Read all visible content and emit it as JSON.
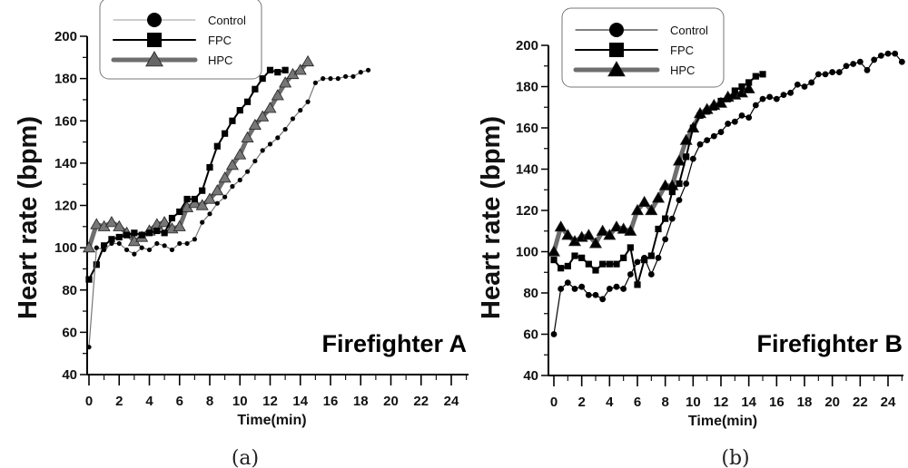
{
  "chart_data": [
    {
      "type": "line",
      "panel_label": "(a)",
      "annotation": "Firefighter A",
      "xlabel": "Time(min)",
      "ylabel": "Heart rate (bpm)",
      "xlim": [
        0,
        25
      ],
      "ylim": [
        40,
        200
      ],
      "xticks": [
        "0",
        "2",
        "4",
        "6",
        "8",
        "10",
        "12",
        "14",
        "16",
        "18",
        "20",
        "22",
        "24"
      ],
      "yticks": [
        "40",
        "60",
        "80",
        "100",
        "120",
        "140",
        "160",
        "180",
        "200"
      ],
      "grid": false,
      "legend_position": "top-left",
      "series": [
        {
          "name": "Control",
          "marker": "circle",
          "color": "#000000",
          "x": [
            0,
            0.5,
            1,
            1.5,
            2,
            2.5,
            3,
            3.5,
            4,
            4.5,
            5,
            5.5,
            6,
            6.5,
            7,
            7.5,
            8,
            8.5,
            9,
            9.5,
            10,
            10.5,
            11,
            11.5,
            12,
            12.5,
            13,
            13.5,
            14,
            14.5,
            15,
            15.5,
            16,
            16.5,
            17,
            17.5,
            18,
            18.5
          ],
          "y": [
            53,
            100,
            99,
            102,
            102,
            99,
            97,
            100,
            99,
            102,
            101,
            99,
            102,
            102,
            104,
            112,
            116,
            121,
            124,
            129,
            132,
            136,
            141,
            146,
            149,
            152,
            156,
            161,
            165,
            169,
            178,
            180,
            180,
            180,
            181,
            181,
            183,
            184
          ]
        },
        {
          "name": "FPC",
          "marker": "square",
          "color": "#000000",
          "x": [
            0,
            0.5,
            1,
            1.5,
            2,
            2.5,
            3,
            3.5,
            4,
            4.5,
            5,
            5.5,
            6,
            6.5,
            7,
            7.5,
            8,
            8.5,
            9,
            9.5,
            10,
            10.5,
            11,
            11.5,
            12,
            12.5,
            13
          ],
          "y": [
            85,
            92,
            101,
            104,
            105,
            106,
            107,
            106,
            107,
            108,
            107,
            114,
            117,
            123,
            123,
            127,
            138,
            148,
            154,
            160,
            165,
            169,
            175,
            180,
            184,
            183,
            184
          ]
        },
        {
          "name": "HPC",
          "marker": "triangle",
          "color": "#6e6e6e",
          "x": [
            0,
            0.5,
            1,
            1.5,
            2,
            2.5,
            3,
            3.5,
            4,
            4.5,
            5,
            5.5,
            6,
            6.5,
            7,
            7.5,
            8,
            8.5,
            9,
            9.5,
            10,
            10.5,
            11,
            11.5,
            12,
            12.5,
            13,
            13.5,
            14,
            14.5
          ],
          "y": [
            100,
            111,
            110,
            112,
            110,
            107,
            103,
            105,
            108,
            111,
            112,
            109,
            110,
            119,
            121,
            120,
            123,
            127,
            133,
            139,
            144,
            152,
            158,
            162,
            166,
            172,
            178,
            182,
            184,
            188
          ]
        }
      ]
    },
    {
      "type": "line",
      "panel_label": "(b)",
      "annotation": "Firefighter B",
      "xlabel": "Time(min)",
      "ylabel": "Heart rate (bpm)",
      "xlim": [
        0,
        25
      ],
      "ylim": [
        40,
        200
      ],
      "xticks": [
        "0",
        "2",
        "4",
        "6",
        "8",
        "10",
        "12",
        "14",
        "16",
        "18",
        "20",
        "22",
        "24"
      ],
      "yticks": [
        "40",
        "60",
        "80",
        "100",
        "120",
        "140",
        "160",
        "180",
        "200"
      ],
      "grid": false,
      "legend_position": "top-left",
      "series": [
        {
          "name": "Control",
          "marker": "circle",
          "color": "#000000",
          "x": [
            0,
            0.5,
            1,
            1.5,
            2,
            2.5,
            3,
            3.5,
            4,
            4.5,
            5,
            5.5,
            6,
            6.5,
            7,
            7.5,
            8,
            8.5,
            9,
            9.5,
            10,
            10.5,
            11,
            11.5,
            12,
            12.5,
            13,
            13.5,
            14,
            14.5,
            15,
            15.5,
            16,
            16.5,
            17,
            17.5,
            18,
            18.5,
            19,
            19.5,
            20,
            20.5,
            21,
            21.5,
            22,
            22.5,
            23,
            23.5,
            24,
            24.5,
            25
          ],
          "y": [
            60,
            82,
            85,
            82,
            83,
            79,
            79,
            77,
            82,
            83,
            82,
            89,
            95,
            97,
            89,
            97,
            106,
            116,
            125,
            133,
            145,
            152,
            154,
            156,
            158,
            162,
            163,
            166,
            165,
            171,
            174,
            175,
            174,
            176,
            177,
            181,
            180,
            182,
            186,
            186,
            187,
            187,
            190,
            191,
            192,
            188,
            193,
            195,
            196,
            196,
            192
          ]
        },
        {
          "name": "FPC",
          "marker": "square",
          "color": "#000000",
          "x": [
            0,
            0.5,
            1,
            1.5,
            2,
            2.5,
            3,
            3.5,
            4,
            4.5,
            5,
            5.5,
            6,
            6.5,
            7,
            7.5,
            8,
            8.5,
            9,
            9.5,
            10,
            10.5,
            11,
            11.5,
            12,
            12.5,
            13,
            13.5,
            14,
            14.5,
            15
          ],
          "y": [
            96,
            92,
            93,
            98,
            97,
            94,
            91,
            94,
            94,
            94,
            97,
            102,
            84,
            96,
            98,
            111,
            116,
            129,
            133,
            146,
            160,
            166,
            168,
            170,
            173,
            174,
            178,
            180,
            182,
            185,
            186
          ]
        },
        {
          "name": "HPC",
          "marker": "triangle",
          "color": "#6e6e6e",
          "x": [
            0,
            0.5,
            1,
            1.5,
            2,
            2.5,
            3,
            3.5,
            4,
            4.5,
            5,
            5.5,
            6,
            6.5,
            7,
            7.5,
            8,
            8.5,
            9,
            9.5,
            10,
            10.5,
            11,
            11.5,
            12,
            12.5,
            13,
            13.5,
            14
          ],
          "y": [
            100,
            112,
            108,
            105,
            107,
            108,
            104,
            110,
            108,
            112,
            111,
            110,
            120,
            124,
            120,
            126,
            132,
            132,
            144,
            154,
            160,
            167,
            169,
            171,
            172,
            175,
            176,
            177,
            179
          ]
        }
      ]
    }
  ]
}
